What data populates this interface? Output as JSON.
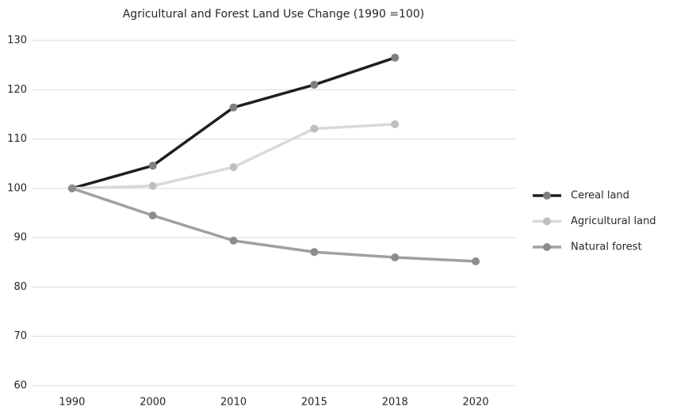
{
  "chart_data": {
    "type": "line",
    "title": "Agricultural and Forest Land Use Change (1990 =100)",
    "categories": [
      "1990",
      "2000",
      "2010",
      "2015",
      "2018",
      "2020"
    ],
    "series": [
      {
        "name": "Cereal land",
        "color": "#1f1f1f",
        "marker_color": "#7f7f7f",
        "values": [
          100,
          104.6,
          116.4,
          121,
          126.5,
          null
        ]
      },
      {
        "name": "Agricultural land",
        "color": "#d9d9d9",
        "marker_color": "#bfbfbf",
        "values": [
          100,
          100.5,
          104.3,
          112.1,
          113,
          null
        ]
      },
      {
        "name": "Natural forest",
        "color": "#a0a0a0",
        "marker_color": "#8c8c8c",
        "values": [
          100,
          94.5,
          89.4,
          87.1,
          86,
          85.2
        ]
      }
    ],
    "ylim": [
      60,
      130
    ],
    "yticks": [
      60,
      70,
      80,
      90,
      100,
      110,
      120,
      130
    ],
    "grid": true,
    "legend": "right"
  }
}
